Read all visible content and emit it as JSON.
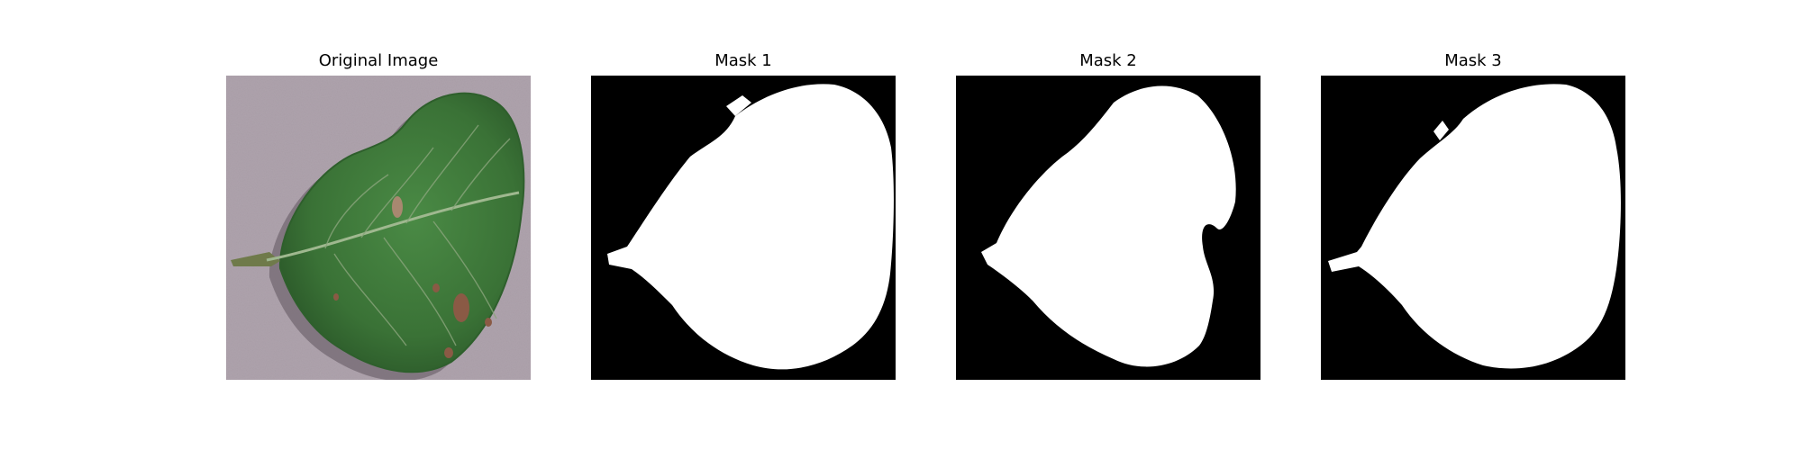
{
  "panels": [
    {
      "title": "Original Image",
      "kind": "photo"
    },
    {
      "title": "Mask 1",
      "kind": "mask"
    },
    {
      "title": "Mask 2",
      "kind": "mask"
    },
    {
      "title": "Mask 3",
      "kind": "mask"
    }
  ],
  "colors": {
    "background_surface": "#a89ca6",
    "leaf": "#3f7a3a",
    "leaf_dark": "#2c5a2a",
    "vein": "#9fb88f",
    "lesion": "#8a5a45",
    "mask_background": "#000000",
    "mask_foreground": "#ffffff"
  }
}
